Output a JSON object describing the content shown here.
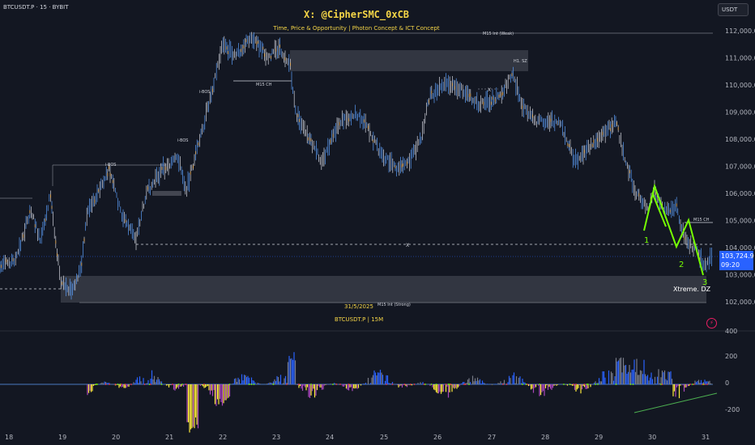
{
  "symbol_line": "BTCUSDT.P · 15 · BYBIT",
  "title": "X: @CipherSMC_0xCB",
  "subtitle": "Time, Price & Opportunity | Photon Concept & ICT Concept",
  "currency": "USDT",
  "last_price": "103,724.9",
  "countdown": "09:20",
  "date_label": "31/5/2025",
  "watermark": "BTCUSDT.P | 15M",
  "labels": {
    "m15_weak": "M15 Int (Weak)",
    "m15_strong": "M15 Int (Strong)",
    "m15_ch_top": "M15 CH",
    "m15_ch_right": "M15 CH",
    "h1_sz": "H1. SZ",
    "ibos": "i-BOS",
    "xtreme": "Xtreme. DZ",
    "x_mark": "X",
    "wave": [
      "1",
      "2",
      "3"
    ]
  },
  "price_axis": [
    "112,000.0",
    "111,000.0",
    "110,000.0",
    "109,000.0",
    "108,000.0",
    "107,000.0",
    "106,000.0",
    "105,000.0",
    "104,000.0",
    "103,000.0",
    "102,000.0"
  ],
  "osc_axis": [
    "400",
    "200",
    "0",
    "-200"
  ],
  "time_axis": [
    "18",
    "19",
    "20",
    "21",
    "22",
    "23",
    "24",
    "25",
    "26",
    "27",
    "28",
    "29",
    "30",
    "31"
  ],
  "colors": {
    "bg": "#131722",
    "candle": "#d1d4dc",
    "accent": "#2962ff",
    "wave": "#76ff03",
    "title": "#f5d547",
    "zone": "#363a45"
  }
}
